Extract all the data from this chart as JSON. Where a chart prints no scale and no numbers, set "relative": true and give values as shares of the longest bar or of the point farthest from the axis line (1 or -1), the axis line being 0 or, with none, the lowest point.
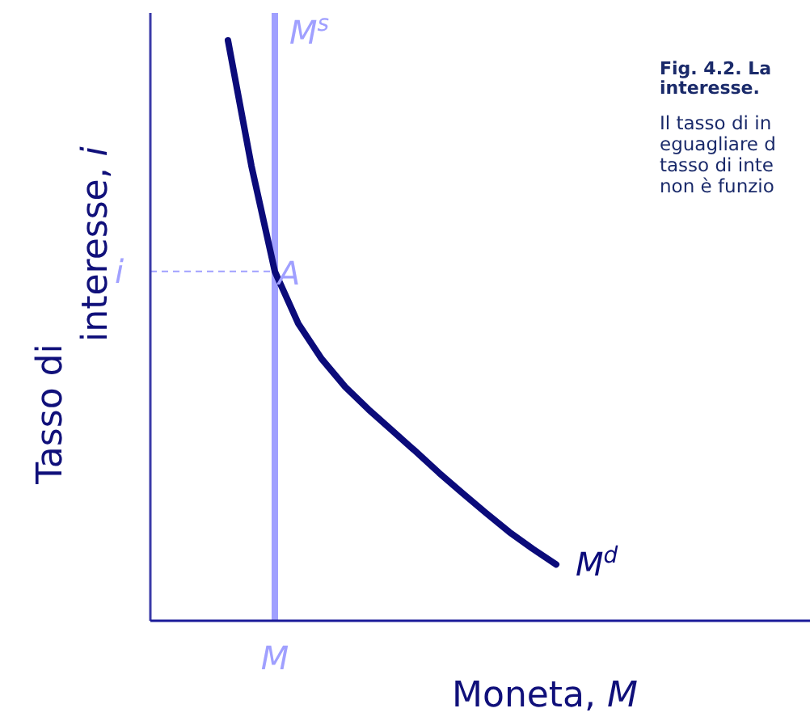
{
  "chart_data": {
    "type": "line",
    "relative": true,
    "xlabel": "Moneta, M",
    "ylabel": "Tasso di interesse, i",
    "legend": false,
    "categories": [
      null,
      null,
      null,
      null,
      null,
      null,
      null,
      null,
      null,
      null,
      null,
      null,
      null,
      null,
      null
    ],
    "series": [
      {
        "name": "M$^{d}$",
        "color": "#0b0b7a",
        "values": [
          1,
          0.784,
          0.602,
          0.512,
          0.451,
          0.403,
          0.364,
          0.328,
          0.292,
          0.255,
          0.22,
          0.186,
          0.153,
          0.124,
          0.097
        ]
      }
    ],
    "ref_lines": [
      {
        "axis": "y",
        "value": 0.602,
        "label": "i",
        "color": "#a0a0ff",
        "line_style": "dashed"
      }
    ],
    "annotations": [
      "A",
      "M",
      "M$^{s}$",
      "Fig. 4.2. La",
      "interesse.",
      "Il tasso di in",
      "eguagliare d",
      "tasso di inte",
      "non è funzio"
    ]
  }
}
